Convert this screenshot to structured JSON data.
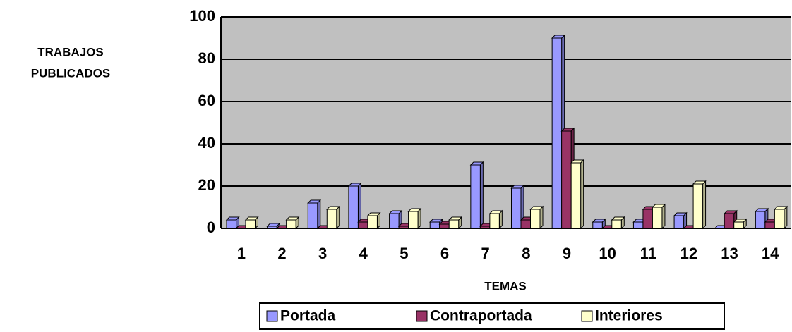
{
  "chart_data": {
    "type": "bar",
    "y_label": [
      "TRABAJOS",
      "PUBLICADOS"
    ],
    "x_label": "TEMAS",
    "categories": [
      "1",
      "2",
      "3",
      "4",
      "5",
      "6",
      "7",
      "8",
      "9",
      "10",
      "11",
      "12",
      "13",
      "14"
    ],
    "series": [
      {
        "name": "Portada",
        "color": "#9999ff",
        "values": [
          4,
          1,
          12,
          20,
          7,
          3,
          30,
          19,
          90,
          3,
          3,
          6,
          0,
          8
        ]
      },
      {
        "name": "Contraportada",
        "color": "#993366",
        "values": [
          0,
          0,
          0,
          3,
          1,
          2,
          1,
          4,
          46,
          0,
          9,
          0,
          7,
          3
        ]
      },
      {
        "name": "Interiores",
        "color": "#ffffcc",
        "values": [
          4,
          4,
          9,
          6,
          8,
          4,
          7,
          9,
          31,
          4,
          10,
          21,
          3,
          9
        ]
      }
    ],
    "ylim": [
      0,
      100
    ],
    "yticks": [
      0,
      20,
      40,
      60,
      80,
      100
    ],
    "grid": true,
    "background": "#c0c0c0"
  }
}
